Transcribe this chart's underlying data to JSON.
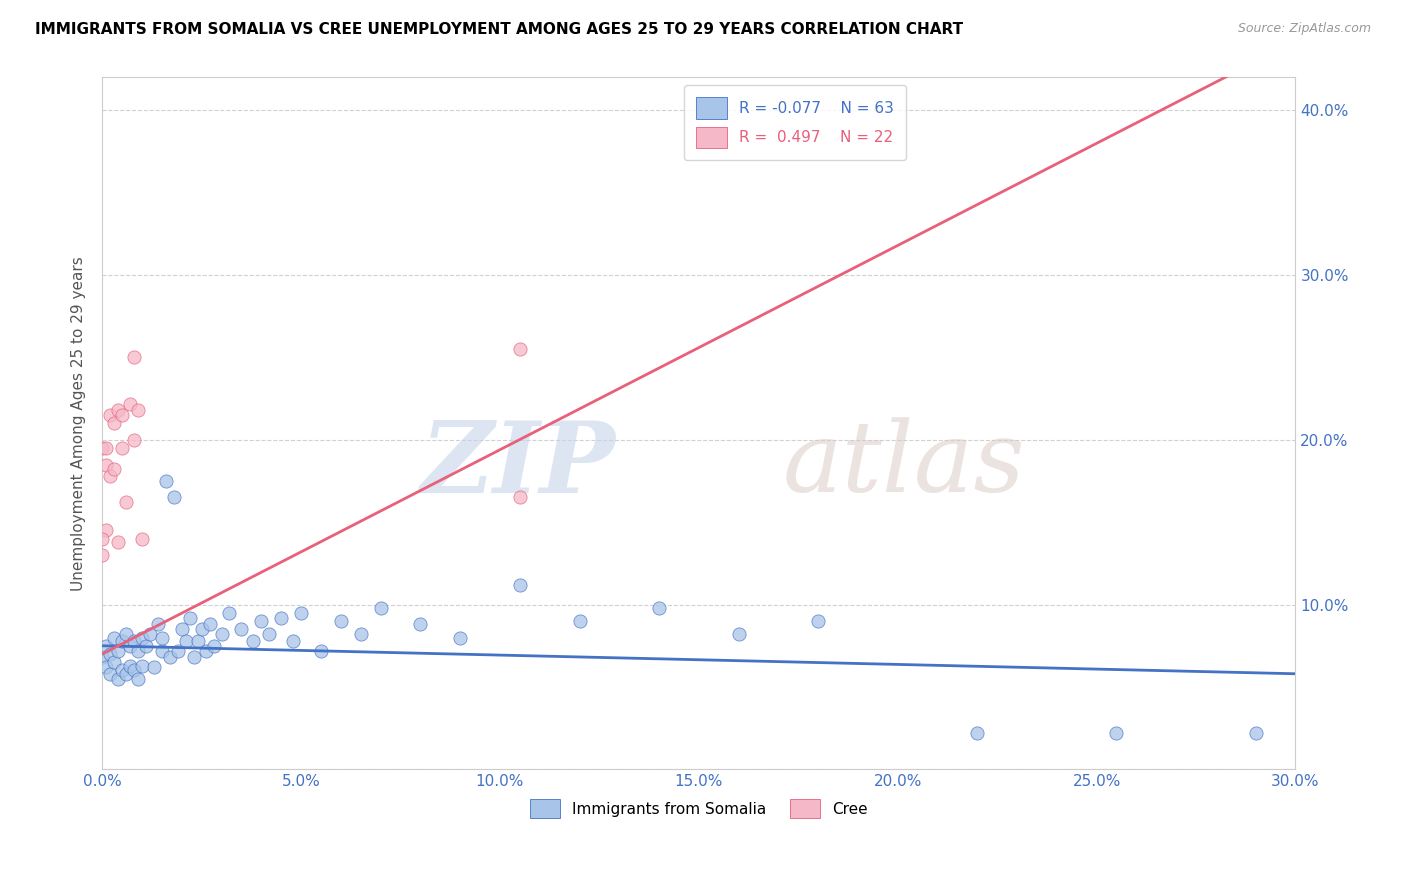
{
  "title": "IMMIGRANTS FROM SOMALIA VS CREE UNEMPLOYMENT AMONG AGES 25 TO 29 YEARS CORRELATION CHART",
  "source": "Source: ZipAtlas.com",
  "ylabel": "Unemployment Among Ages 25 to 29 years",
  "xlim": [
    0.0,
    0.3
  ],
  "ylim": [
    0.0,
    0.42
  ],
  "xticks": [
    0.0,
    0.05,
    0.1,
    0.15,
    0.2,
    0.25,
    0.3
  ],
  "yticks": [
    0.0,
    0.1,
    0.2,
    0.3,
    0.4
  ],
  "xtick_labels": [
    "0.0%",
    "5.0%",
    "10.0%",
    "15.0%",
    "20.0%",
    "25.0%",
    "30.0%"
  ],
  "ytick_labels_right": [
    "",
    "10.0%",
    "20.0%",
    "30.0%",
    "40.0%"
  ],
  "blue_color": "#a8c4e8",
  "pink_color": "#f4b8c8",
  "blue_line_color": "#4472c4",
  "pink_line_color": "#e8607a",
  "R_blue": -0.077,
  "N_blue": 63,
  "R_pink": 0.497,
  "N_pink": 22,
  "legend1_label": "Immigrants from Somalia",
  "legend2_label": "Cree",
  "watermark_zip": "ZIP",
  "watermark_atlas": "atlas",
  "blue_line_x0": 0.0,
  "blue_line_y0": 0.075,
  "blue_line_x1": 0.3,
  "blue_line_y1": 0.058,
  "pink_line_x0": 0.0,
  "pink_line_y0": 0.07,
  "pink_line_x1": 0.25,
  "pink_line_y1": 0.38,
  "blue_x": [
    0.0,
    0.001,
    0.001,
    0.002,
    0.002,
    0.003,
    0.003,
    0.004,
    0.004,
    0.005,
    0.005,
    0.006,
    0.006,
    0.007,
    0.007,
    0.008,
    0.008,
    0.009,
    0.009,
    0.01,
    0.01,
    0.011,
    0.012,
    0.013,
    0.014,
    0.015,
    0.015,
    0.016,
    0.017,
    0.018,
    0.019,
    0.02,
    0.021,
    0.022,
    0.023,
    0.024,
    0.025,
    0.026,
    0.027,
    0.028,
    0.03,
    0.032,
    0.035,
    0.038,
    0.04,
    0.042,
    0.045,
    0.048,
    0.05,
    0.055,
    0.06,
    0.065,
    0.07,
    0.08,
    0.09,
    0.105,
    0.12,
    0.14,
    0.16,
    0.18,
    0.22,
    0.255,
    0.29
  ],
  "blue_y": [
    0.068,
    0.075,
    0.062,
    0.07,
    0.058,
    0.08,
    0.065,
    0.072,
    0.055,
    0.078,
    0.06,
    0.082,
    0.058,
    0.075,
    0.063,
    0.078,
    0.06,
    0.072,
    0.055,
    0.08,
    0.063,
    0.075,
    0.082,
    0.062,
    0.088,
    0.072,
    0.08,
    0.175,
    0.068,
    0.165,
    0.072,
    0.085,
    0.078,
    0.092,
    0.068,
    0.078,
    0.085,
    0.072,
    0.088,
    0.075,
    0.082,
    0.095,
    0.085,
    0.078,
    0.09,
    0.082,
    0.092,
    0.078,
    0.095,
    0.072,
    0.09,
    0.082,
    0.098,
    0.088,
    0.08,
    0.112,
    0.09,
    0.098,
    0.082,
    0.09,
    0.022,
    0.022,
    0.022
  ],
  "pink_x": [
    0.0,
    0.0,
    0.001,
    0.001,
    0.001,
    0.002,
    0.002,
    0.003,
    0.003,
    0.004,
    0.004,
    0.005,
    0.005,
    0.006,
    0.007,
    0.008,
    0.008,
    0.009,
    0.01,
    0.105,
    0.105,
    0.0
  ],
  "pink_y": [
    0.13,
    0.195,
    0.145,
    0.195,
    0.185,
    0.215,
    0.178,
    0.21,
    0.182,
    0.138,
    0.218,
    0.195,
    0.215,
    0.162,
    0.222,
    0.25,
    0.2,
    0.218,
    0.14,
    0.255,
    0.165,
    0.14
  ]
}
